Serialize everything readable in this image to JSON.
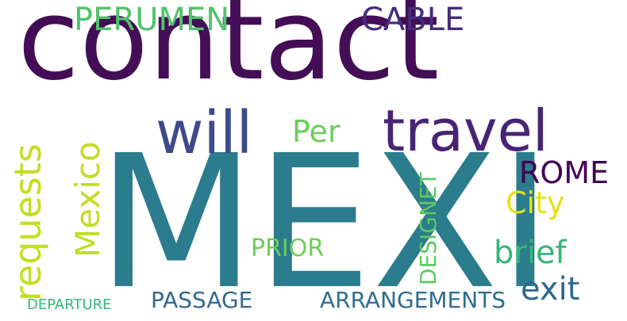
{
  "wordcloud": {
    "words": [
      {
        "text": "contact",
        "color": "#440e57"
      },
      {
        "text": "MEXI",
        "color": "#2b7c8d"
      },
      {
        "text": "will",
        "color": "#3e4a89"
      },
      {
        "text": "travel",
        "color": "#482475"
      },
      {
        "text": "PERUMEN",
        "color": "#4fc46a"
      },
      {
        "text": "CABLE",
        "color": "#472d7b"
      },
      {
        "text": "Per",
        "color": "#6ccd5a"
      },
      {
        "text": "ROME",
        "color": "#440154"
      },
      {
        "text": "City",
        "color": "#e2e418"
      },
      {
        "text": "brief",
        "color": "#35b779"
      },
      {
        "text": "exit",
        "color": "#30688e"
      },
      {
        "text": "PRIOR",
        "color": "#6ece58"
      },
      {
        "text": "PASSAGE",
        "color": "#31688e"
      },
      {
        "text": "ARRANGEMENTS",
        "color": "#2e6d8e"
      },
      {
        "text": "DEPARTURE",
        "color": "#35b779"
      },
      {
        "text": "requests",
        "color": "#c2df23"
      },
      {
        "text": "Mexico",
        "color": "#bddf26"
      },
      {
        "text": "DESIGNET",
        "color": "#5ec962"
      }
    ]
  }
}
